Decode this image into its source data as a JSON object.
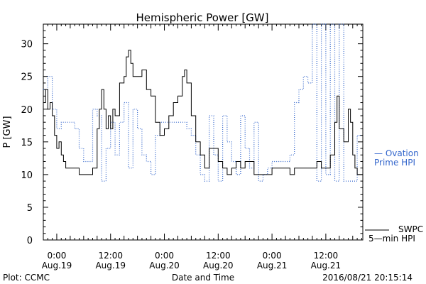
{
  "chart_data": {
    "type": "line",
    "title": "Hemispheric Power [GW]",
    "xlabel": "Date and Time",
    "ylabel": "P [GW]",
    "ylim": [
      0,
      33
    ],
    "xlim": [
      "2016-08-18 21:00",
      "2016-08-21 20:15"
    ],
    "yticks": [
      "0",
      "5",
      "10",
      "15",
      "20",
      "25",
      "30"
    ],
    "xticks": [
      {
        "time": "0:00",
        "date": "Aug.19"
      },
      {
        "time": "12:00",
        "date": "Aug.19"
      },
      {
        "time": "0:00",
        "date": "Aug.20"
      },
      {
        "time": "12:00",
        "date": "Aug.20"
      },
      {
        "time": "0:00",
        "date": "Aug.21"
      },
      {
        "time": "12:00",
        "date": "Aug.21"
      }
    ],
    "grid": false,
    "series": [
      {
        "name": "Ovation Prime HPI",
        "label_lines": [
          "— Ovation",
          "Prime HPI"
        ],
        "color": "#3366cc",
        "style": "dotted",
        "points": [
          [
            "2016-08-18 21:00",
            23
          ],
          [
            "2016-08-18 22:00",
            25
          ],
          [
            "2016-08-18 23:00",
            20
          ],
          [
            "2016-08-19 00:00",
            17
          ],
          [
            "2016-08-19 01:00",
            18
          ],
          [
            "2016-08-19 02:00",
            18
          ],
          [
            "2016-08-19 03:00",
            18
          ],
          [
            "2016-08-19 04:00",
            17
          ],
          [
            "2016-08-19 05:00",
            14
          ],
          [
            "2016-08-19 06:00",
            12
          ],
          [
            "2016-08-19 07:00",
            12
          ],
          [
            "2016-08-19 08:00",
            20
          ],
          [
            "2016-08-19 09:00",
            19
          ],
          [
            "2016-08-19 10:00",
            9
          ],
          [
            "2016-08-19 11:00",
            14
          ],
          [
            "2016-08-19 12:00",
            18
          ],
          [
            "2016-08-19 13:00",
            13
          ],
          [
            "2016-08-19 14:00",
            18
          ],
          [
            "2016-08-19 15:00",
            21
          ],
          [
            "2016-08-19 16:00",
            11
          ],
          [
            "2016-08-19 17:00",
            20
          ],
          [
            "2016-08-19 18:00",
            17
          ],
          [
            "2016-08-19 19:00",
            13
          ],
          [
            "2016-08-19 20:00",
            12
          ],
          [
            "2016-08-19 21:00",
            10
          ],
          [
            "2016-08-19 22:00",
            16
          ],
          [
            "2016-08-19 23:00",
            18
          ],
          [
            "2016-08-20 00:00",
            18
          ],
          [
            "2016-08-20 01:00",
            18
          ],
          [
            "2016-08-20 02:00",
            18
          ],
          [
            "2016-08-20 03:00",
            18
          ],
          [
            "2016-08-20 04:00",
            18
          ],
          [
            "2016-08-20 05:00",
            17
          ],
          [
            "2016-08-20 06:00",
            16
          ],
          [
            "2016-08-20 07:00",
            13
          ],
          [
            "2016-08-20 08:00",
            10
          ],
          [
            "2016-08-20 09:00",
            9
          ],
          [
            "2016-08-20 10:00",
            19
          ],
          [
            "2016-08-20 11:00",
            13
          ],
          [
            "2016-08-20 12:00",
            9
          ],
          [
            "2016-08-20 13:00",
            19
          ],
          [
            "2016-08-20 14:00",
            15
          ],
          [
            "2016-08-20 15:00",
            12
          ],
          [
            "2016-08-20 16:00",
            10
          ],
          [
            "2016-08-20 17:00",
            19
          ],
          [
            "2016-08-20 18:00",
            14
          ],
          [
            "2016-08-20 19:00",
            11
          ],
          [
            "2016-08-20 20:00",
            18
          ],
          [
            "2016-08-20 21:00",
            9
          ],
          [
            "2016-08-20 22:00",
            10
          ],
          [
            "2016-08-20 23:00",
            11
          ],
          [
            "2016-08-21 00:00",
            12
          ],
          [
            "2016-08-21 01:00",
            12
          ],
          [
            "2016-08-21 02:00",
            12
          ],
          [
            "2016-08-21 03:00",
            12
          ],
          [
            "2016-08-21 04:00",
            13
          ],
          [
            "2016-08-21 05:00",
            21
          ],
          [
            "2016-08-21 06:00",
            23
          ],
          [
            "2016-08-21 07:00",
            25
          ],
          [
            "2016-08-21 08:00",
            24
          ],
          [
            "2016-08-21 09:00",
            33
          ],
          [
            "2016-08-21 10:00",
            9
          ],
          [
            "2016-08-21 11:00",
            33
          ],
          [
            "2016-08-21 12:00",
            10
          ],
          [
            "2016-08-21 13:00",
            33
          ],
          [
            "2016-08-21 14:00",
            9
          ],
          [
            "2016-08-21 15:00",
            33
          ],
          [
            "2016-08-21 16:00",
            9
          ],
          [
            "2016-08-21 17:00",
            9
          ],
          [
            "2016-08-21 18:00",
            9
          ],
          [
            "2016-08-21 19:00",
            16
          ],
          [
            "2016-08-21 20:00",
            16
          ]
        ]
      },
      {
        "name": "SWPC 5-min HPI",
        "label_lines": [
          "SWPC",
          "5—min HPI"
        ],
        "color": "#000000",
        "style": "solid",
        "points": [
          [
            "2016-08-18 21:00",
            21
          ],
          [
            "2016-08-18 21:30",
            23
          ],
          [
            "2016-08-18 22:00",
            20
          ],
          [
            "2016-08-18 22:30",
            21
          ],
          [
            "2016-08-18 23:00",
            19
          ],
          [
            "2016-08-18 23:30",
            16
          ],
          [
            "2016-08-19 00:00",
            14
          ],
          [
            "2016-08-19 00:30",
            15
          ],
          [
            "2016-08-19 01:00",
            13
          ],
          [
            "2016-08-19 01:30",
            12
          ],
          [
            "2016-08-19 02:00",
            11
          ],
          [
            "2016-08-19 03:00",
            11
          ],
          [
            "2016-08-19 04:00",
            11
          ],
          [
            "2016-08-19 05:00",
            10
          ],
          [
            "2016-08-19 06:00",
            10
          ],
          [
            "2016-08-19 07:00",
            10
          ],
          [
            "2016-08-19 08:00",
            11
          ],
          [
            "2016-08-19 09:00",
            17
          ],
          [
            "2016-08-19 09:30",
            20
          ],
          [
            "2016-08-19 10:00",
            23
          ],
          [
            "2016-08-19 10:30",
            20
          ],
          [
            "2016-08-19 11:00",
            17
          ],
          [
            "2016-08-19 11:30",
            19
          ],
          [
            "2016-08-19 12:00",
            17
          ],
          [
            "2016-08-19 12:30",
            20
          ],
          [
            "2016-08-19 13:00",
            19
          ],
          [
            "2016-08-19 14:00",
            24
          ],
          [
            "2016-08-19 15:00",
            25
          ],
          [
            "2016-08-19 15:30",
            28
          ],
          [
            "2016-08-19 16:00",
            29
          ],
          [
            "2016-08-19 16:30",
            27
          ],
          [
            "2016-08-19 17:00",
            25
          ],
          [
            "2016-08-19 18:00",
            25
          ],
          [
            "2016-08-19 19:00",
            26
          ],
          [
            "2016-08-19 20:00",
            23
          ],
          [
            "2016-08-19 21:00",
            22
          ],
          [
            "2016-08-19 22:00",
            18
          ],
          [
            "2016-08-19 23:00",
            16
          ],
          [
            "2016-08-20 00:00",
            17
          ],
          [
            "2016-08-20 01:00",
            19
          ],
          [
            "2016-08-20 02:00",
            21
          ],
          [
            "2016-08-20 03:00",
            22
          ],
          [
            "2016-08-20 04:00",
            25
          ],
          [
            "2016-08-20 04:30",
            26
          ],
          [
            "2016-08-20 05:00",
            24
          ],
          [
            "2016-08-20 06:00",
            19
          ],
          [
            "2016-08-20 07:00",
            15
          ],
          [
            "2016-08-20 08:00",
            13
          ],
          [
            "2016-08-20 09:00",
            11
          ],
          [
            "2016-08-20 10:00",
            14
          ],
          [
            "2016-08-20 11:00",
            14
          ],
          [
            "2016-08-20 12:00",
            12
          ],
          [
            "2016-08-20 13:00",
            11
          ],
          [
            "2016-08-20 14:00",
            10
          ],
          [
            "2016-08-20 15:00",
            11
          ],
          [
            "2016-08-20 16:00",
            12
          ],
          [
            "2016-08-20 17:00",
            11
          ],
          [
            "2016-08-20 18:00",
            12
          ],
          [
            "2016-08-20 19:00",
            12
          ],
          [
            "2016-08-20 20:00",
            10
          ],
          [
            "2016-08-20 21:00",
            10
          ],
          [
            "2016-08-20 22:00",
            10
          ],
          [
            "2016-08-20 23:00",
            10
          ],
          [
            "2016-08-21 00:00",
            11
          ],
          [
            "2016-08-21 01:00",
            11
          ],
          [
            "2016-08-21 02:00",
            11
          ],
          [
            "2016-08-21 03:00",
            11
          ],
          [
            "2016-08-21 04:00",
            10
          ],
          [
            "2016-08-21 05:00",
            11
          ],
          [
            "2016-08-21 06:00",
            11
          ],
          [
            "2016-08-21 07:00",
            11
          ],
          [
            "2016-08-21 08:00",
            11
          ],
          [
            "2016-08-21 09:00",
            11
          ],
          [
            "2016-08-21 10:00",
            12
          ],
          [
            "2016-08-21 11:00",
            11
          ],
          [
            "2016-08-21 12:00",
            11
          ],
          [
            "2016-08-21 13:00",
            13
          ],
          [
            "2016-08-21 14:00",
            18
          ],
          [
            "2016-08-21 14:30",
            22
          ],
          [
            "2016-08-21 15:00",
            17
          ],
          [
            "2016-08-21 16:00",
            15
          ],
          [
            "2016-08-21 17:00",
            20
          ],
          [
            "2016-08-21 17:30",
            18
          ],
          [
            "2016-08-21 18:00",
            13
          ],
          [
            "2016-08-21 18:30",
            11
          ],
          [
            "2016-08-21 19:00",
            10
          ],
          [
            "2016-08-21 20:00",
            10
          ],
          [
            "2016-08-21 20:15",
            10
          ]
        ]
      }
    ]
  },
  "footer": {
    "source": "Plot: CCMC",
    "timestamp": "2016/08/21 20:15:14"
  }
}
